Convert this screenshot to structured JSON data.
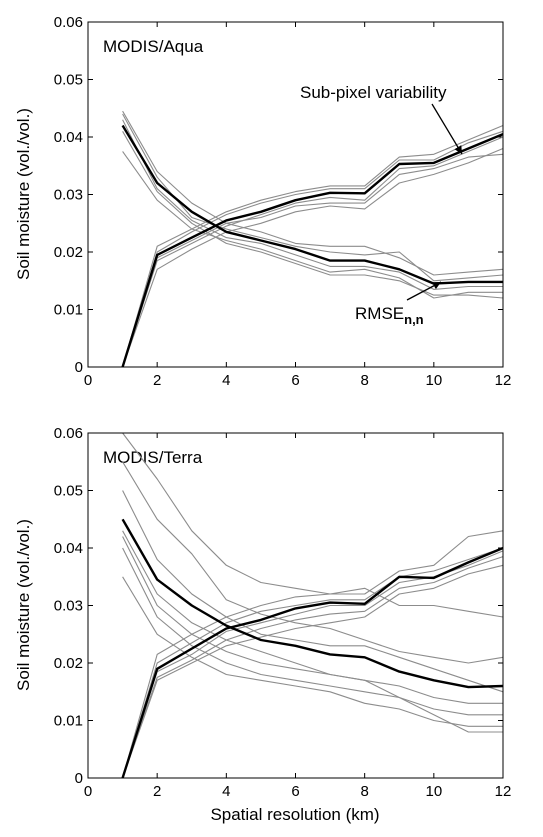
{
  "xlabel": "Spatial resolution (km)",
  "chart_data": [
    {
      "type": "line",
      "title": "MODIS/Aqua",
      "ylabel": "Soil moisture (vol./vol.)",
      "xlim": [
        0,
        12
      ],
      "ylim": [
        0,
        0.06
      ],
      "xticks": [
        "0",
        "2",
        "4",
        "6",
        "8",
        "10",
        "12"
      ],
      "yticks": [
        "0",
        "0.01",
        "0.02",
        "0.03",
        "0.04",
        "0.05",
        "0.06"
      ],
      "grid": false,
      "annotations": [
        {
          "text": "Sub-pixel variability",
          "x": 8.8,
          "y": 0.0455,
          "arrow_to": [
            9.8,
            0.0365
          ]
        },
        {
          "text": "RMSE",
          "subscript": "n,n",
          "x": 9.05,
          "y": 0.009,
          "arrow_to": [
            10.0,
            0.0145
          ]
        }
      ],
      "x": [
        1,
        2,
        3,
        4,
        5,
        6,
        7,
        8,
        9,
        10,
        11,
        12
      ],
      "series": [
        {
          "group": "RMSE",
          "bold": true,
          "values": [
            0.042,
            0.032,
            0.027,
            0.0235,
            0.022,
            0.0205,
            0.0185,
            0.0185,
            0.017,
            0.0145,
            0.0148,
            0.0148
          ]
        },
        {
          "group": "RMSE",
          "bold": false,
          "values": [
            0.0445,
            0.034,
            0.0285,
            0.025,
            0.0235,
            0.0215,
            0.021,
            0.021,
            0.019,
            0.016,
            0.0165,
            0.017
          ]
        },
        {
          "group": "RMSE",
          "bold": false,
          "values": [
            0.044,
            0.033,
            0.026,
            0.024,
            0.0225,
            0.021,
            0.02,
            0.0195,
            0.02,
            0.015,
            0.0155,
            0.016
          ]
        },
        {
          "group": "RMSE",
          "bold": false,
          "values": [
            0.043,
            0.031,
            0.0255,
            0.0225,
            0.0215,
            0.0195,
            0.0175,
            0.0175,
            0.0165,
            0.0135,
            0.014,
            0.014
          ]
        },
        {
          "group": "RMSE",
          "bold": false,
          "values": [
            0.0375,
            0.029,
            0.024,
            0.022,
            0.0205,
            0.0185,
            0.0165,
            0.017,
            0.0155,
            0.012,
            0.013,
            0.013
          ]
        },
        {
          "group": "RMSE",
          "bold": false,
          "values": [
            0.041,
            0.0305,
            0.025,
            0.0215,
            0.02,
            0.018,
            0.016,
            0.016,
            0.015,
            0.0125,
            0.0125,
            0.012
          ]
        },
        {
          "group": "Sub-pixel variability",
          "bold": true,
          "values": [
            0.0,
            0.0195,
            0.0225,
            0.0255,
            0.027,
            0.029,
            0.0303,
            0.0302,
            0.0353,
            0.0355,
            0.038,
            0.0405
          ]
        },
        {
          "group": "Sub-pixel variability",
          "bold": false,
          "values": [
            0.0,
            0.021,
            0.024,
            0.027,
            0.029,
            0.0305,
            0.0315,
            0.0315,
            0.0365,
            0.037,
            0.0395,
            0.042
          ]
        },
        {
          "group": "Sub-pixel variability",
          "bold": false,
          "values": [
            0.0,
            0.02,
            0.0235,
            0.0265,
            0.0285,
            0.03,
            0.031,
            0.031,
            0.036,
            0.036,
            0.039,
            0.041
          ]
        },
        {
          "group": "Sub-pixel variability",
          "bold": false,
          "values": [
            0.0,
            0.0185,
            0.0215,
            0.0245,
            0.0265,
            0.0285,
            0.0295,
            0.029,
            0.0345,
            0.035,
            0.0375,
            0.04
          ]
        },
        {
          "group": "Sub-pixel variability",
          "bold": false,
          "values": [
            0.0,
            0.017,
            0.0205,
            0.0235,
            0.025,
            0.027,
            0.028,
            0.0275,
            0.032,
            0.0335,
            0.0355,
            0.038
          ]
        },
        {
          "group": "Sub-pixel variability",
          "bold": false,
          "values": [
            0.0,
            0.019,
            0.022,
            0.025,
            0.026,
            0.028,
            0.0285,
            0.0285,
            0.0335,
            0.0345,
            0.0365,
            0.037
          ]
        }
      ]
    },
    {
      "type": "line",
      "title": "MODIS/Terra",
      "ylabel": "Soil moisture (vol./vol.)",
      "xlabel": "Spatial resolution (km)",
      "xlim": [
        0,
        12
      ],
      "ylim": [
        0,
        0.06
      ],
      "xticks": [
        "0",
        "2",
        "4",
        "6",
        "8",
        "10",
        "12"
      ],
      "yticks": [
        "0",
        "0.01",
        "0.02",
        "0.03",
        "0.04",
        "0.05",
        "0.06"
      ],
      "grid": false,
      "annotations": [],
      "x": [
        1,
        2,
        3,
        4,
        5,
        6,
        7,
        8,
        9,
        10,
        11,
        12
      ],
      "series": [
        {
          "group": "RMSE",
          "bold": true,
          "values": [
            0.045,
            0.0345,
            0.03,
            0.0265,
            0.024,
            0.023,
            0.0215,
            0.021,
            0.0185,
            0.017,
            0.0158,
            0.016
          ]
        },
        {
          "group": "RMSE",
          "bold": false,
          "values": [
            0.06,
            0.052,
            0.043,
            0.037,
            0.034,
            0.033,
            0.032,
            0.033,
            0.03,
            0.03,
            0.029,
            0.028
          ]
        },
        {
          "group": "RMSE",
          "bold": false,
          "values": [
            0.055,
            0.045,
            0.039,
            0.031,
            0.0285,
            0.027,
            0.026,
            0.024,
            0.022,
            0.021,
            0.02,
            0.021
          ]
        },
        {
          "group": "RMSE",
          "bold": false,
          "values": [
            0.05,
            0.038,
            0.032,
            0.028,
            0.025,
            0.024,
            0.023,
            0.023,
            0.021,
            0.019,
            0.017,
            0.015
          ]
        },
        {
          "group": "RMSE",
          "bold": false,
          "values": [
            0.042,
            0.03,
            0.025,
            0.022,
            0.02,
            0.019,
            0.018,
            0.017,
            0.016,
            0.014,
            0.013,
            0.013
          ]
        },
        {
          "group": "RMSE",
          "bold": false,
          "values": [
            0.04,
            0.028,
            0.023,
            0.02,
            0.018,
            0.017,
            0.016,
            0.015,
            0.014,
            0.012,
            0.011,
            0.011
          ]
        },
        {
          "group": "RMSE",
          "bold": false,
          "values": [
            0.035,
            0.025,
            0.021,
            0.018,
            0.017,
            0.016,
            0.015,
            0.013,
            0.012,
            0.01,
            0.009,
            0.009
          ]
        },
        {
          "group": "RMSE",
          "bold": false,
          "values": [
            0.043,
            0.032,
            0.027,
            0.024,
            0.022,
            0.02,
            0.018,
            0.017,
            0.014,
            0.011,
            0.008,
            0.008
          ]
        },
        {
          "group": "Sub-pixel variability",
          "bold": true,
          "values": [
            0.0,
            0.019,
            0.0225,
            0.026,
            0.0275,
            0.0295,
            0.0305,
            0.0303,
            0.035,
            0.0348,
            0.0375,
            0.04
          ]
        },
        {
          "group": "Sub-pixel variability",
          "bold": false,
          "values": [
            0.0,
            0.0215,
            0.025,
            0.028,
            0.03,
            0.0315,
            0.032,
            0.032,
            0.036,
            0.037,
            0.042,
            0.043
          ]
        },
        {
          "group": "Sub-pixel variability",
          "bold": false,
          "values": [
            0.0,
            0.02,
            0.0235,
            0.027,
            0.029,
            0.03,
            0.031,
            0.031,
            0.035,
            0.036,
            0.038,
            0.04
          ]
        },
        {
          "group": "Sub-pixel variability",
          "bold": false,
          "values": [
            0.0,
            0.0185,
            0.0215,
            0.0255,
            0.027,
            0.0285,
            0.03,
            0.03,
            0.034,
            0.035,
            0.037,
            0.0395
          ]
        },
        {
          "group": "Sub-pixel variability",
          "bold": false,
          "values": [
            0.0,
            0.0175,
            0.0205,
            0.024,
            0.026,
            0.0275,
            0.0285,
            0.029,
            0.033,
            0.034,
            0.0365,
            0.0385
          ]
        },
        {
          "group": "Sub-pixel variability",
          "bold": false,
          "values": [
            0.0,
            0.017,
            0.02,
            0.023,
            0.0245,
            0.026,
            0.027,
            0.028,
            0.032,
            0.033,
            0.0355,
            0.037
          ]
        }
      ]
    }
  ]
}
